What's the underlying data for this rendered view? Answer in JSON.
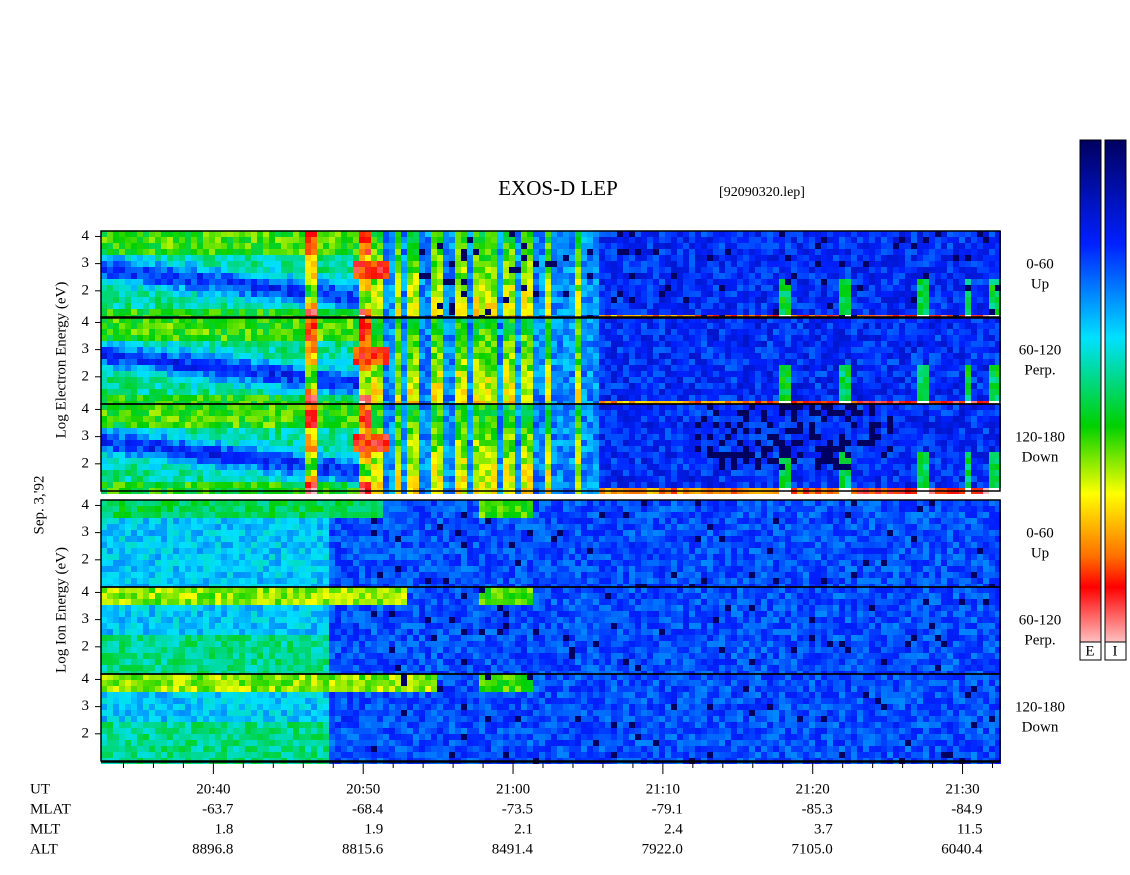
{
  "title": "EXOS-D LEP",
  "file": "[92090320.lep]",
  "date": "Sep. 3,'92",
  "electron_label": "Log  Electron  Energy (eV)",
  "ion_label": "Log  Ion  Energy (eV)",
  "ylim": [
    1,
    4.2
  ],
  "yticks": [
    2,
    3,
    4
  ],
  "panels": [
    {
      "group": "electron",
      "label": [
        "0-60",
        "Up"
      ]
    },
    {
      "group": "electron",
      "label": [
        "60-120",
        "Perp."
      ]
    },
    {
      "group": "electron",
      "label": [
        "120-180",
        "Down"
      ]
    },
    {
      "group": "ion",
      "label": [
        "0-60",
        "Up"
      ]
    },
    {
      "group": "ion",
      "label": [
        "60-120",
        "Perp."
      ]
    },
    {
      "group": "ion",
      "label": [
        "120-180",
        "Down"
      ]
    }
  ],
  "xlim": [
    1232.5,
    1292.5
  ],
  "xticks": [
    {
      "value": 1240,
      "label": "20:40"
    },
    {
      "value": 1250,
      "label": "20:50"
    },
    {
      "value": 1260,
      "label": "21:00"
    },
    {
      "value": 1270,
      "label": "21:10"
    },
    {
      "value": 1280,
      "label": "21:20"
    },
    {
      "value": 1290,
      "label": "21:30"
    }
  ],
  "xticks_minor": [
    1234,
    1236,
    1238,
    1242,
    1244,
    1246,
    1248,
    1252,
    1254,
    1256,
    1258,
    1262,
    1264,
    1266,
    1268,
    1272,
    1274,
    1276,
    1278,
    1282,
    1284,
    1286,
    1288,
    1292
  ],
  "table": {
    "rows": [
      {
        "name": "MLAT",
        "values": [
          "-63.7",
          "-68.4",
          "-73.5",
          "-79.1",
          "-85.3",
          "-84.9"
        ]
      },
      {
        "name": "MLT",
        "values": [
          "1.8",
          "1.9",
          "2.1",
          "2.4",
          "3.7",
          "11.5"
        ]
      },
      {
        "name": "ALT",
        "values": [
          "8896.8",
          "8815.6",
          "8491.4",
          "7922.0",
          "7105.0",
          "6040.4"
        ]
      }
    ],
    "ut_name": "UT"
  },
  "colorbar_labels": [
    "E",
    "I"
  ]
}
